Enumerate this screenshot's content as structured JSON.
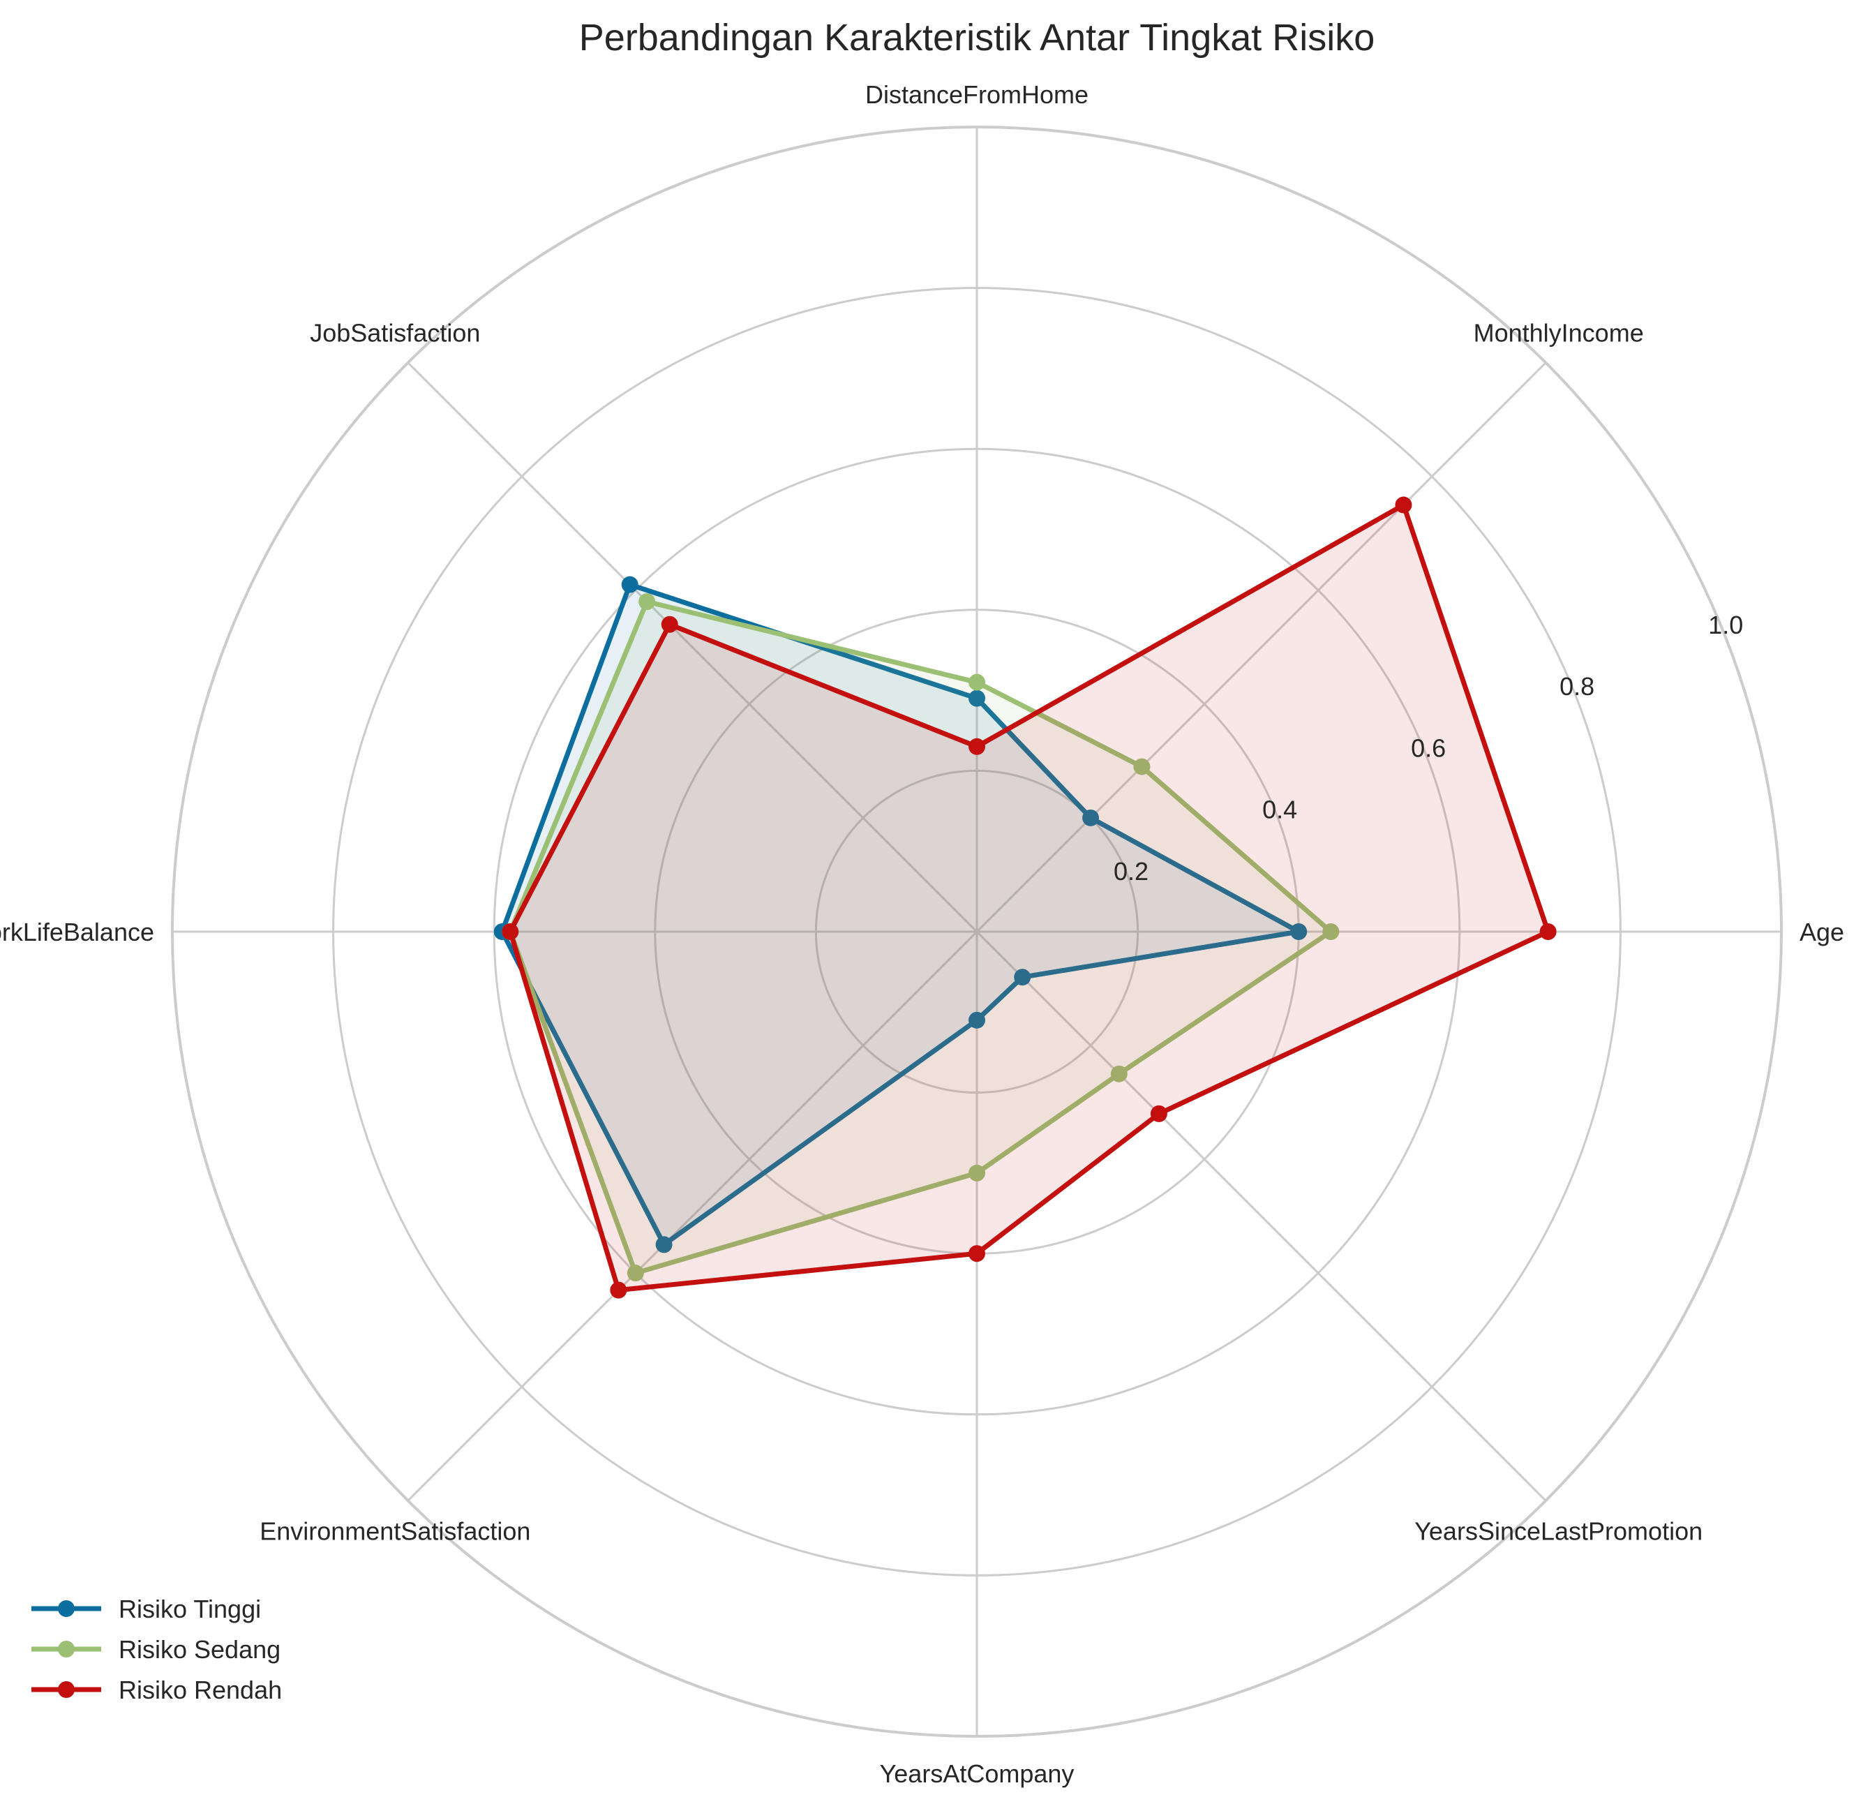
{
  "chart_data": {
    "type": "radar",
    "title": "Perbandingan Karakteristik Antar Tingkat Risiko",
    "categories": [
      "Age",
      "MonthlyIncome",
      "DistanceFromHome",
      "JobSatisfaction",
      "WorkLifeBalance",
      "EnvironmentSatisfaction",
      "YearsAtCompany",
      "YearsSinceLastPromotion"
    ],
    "rlim": [
      0,
      1.0
    ],
    "r_ticks": [
      0.2,
      0.4,
      0.6,
      0.8,
      1.0
    ],
    "r_tick_labels": [
      "0.2",
      "0.4",
      "0.6",
      "0.8",
      "1.0"
    ],
    "grid": true,
    "legend_position": "bottom-left",
    "series": [
      {
        "name": "Risiko Tinggi",
        "color": "#0c6e9e",
        "values": [
          0.4,
          0.2,
          0.29,
          0.61,
          0.59,
          0.55,
          0.11,
          0.08
        ]
      },
      {
        "name": "Risiko Sedang",
        "color": "#9bbf73",
        "values": [
          0.44,
          0.29,
          0.31,
          0.58,
          0.58,
          0.6,
          0.3,
          0.25
        ]
      },
      {
        "name": "Risiko Rendah",
        "color": "#c3100f",
        "values": [
          0.71,
          0.75,
          0.23,
          0.54,
          0.58,
          0.63,
          0.4,
          0.32
        ]
      }
    ]
  }
}
